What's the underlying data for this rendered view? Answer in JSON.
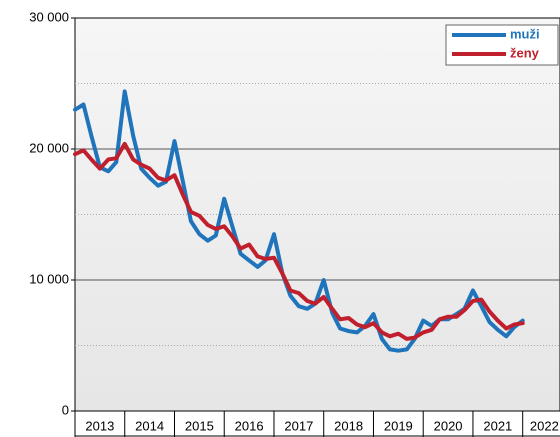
{
  "chart_data": {
    "type": "line",
    "categories": [
      "2013",
      "2014",
      "2015",
      "2016",
      "2017",
      "2018",
      "2019",
      "2020",
      "2021",
      "2022"
    ],
    "x": [
      2013,
      2013.17,
      2013.33,
      2013.5,
      2013.67,
      2013.83,
      2014,
      2014.17,
      2014.33,
      2014.5,
      2014.67,
      2014.83,
      2015,
      2015.17,
      2015.33,
      2015.5,
      2015.67,
      2015.83,
      2016,
      2016.17,
      2016.33,
      2016.5,
      2016.67,
      2016.83,
      2017,
      2017.17,
      2017.33,
      2017.5,
      2017.67,
      2017.83,
      2018,
      2018.17,
      2018.33,
      2018.5,
      2018.67,
      2018.83,
      2019,
      2019.17,
      2019.33,
      2019.5,
      2019.67,
      2019.83,
      2020,
      2020.17,
      2020.33,
      2020.5,
      2020.67,
      2020.83,
      2021,
      2021.17,
      2021.33,
      2021.5,
      2021.67,
      2021.83,
      2022
    ],
    "series": [
      {
        "name": "muži",
        "color": "#1f74bb",
        "values": [
          23000,
          23400,
          21000,
          18600,
          18300,
          19000,
          24400,
          21000,
          18500,
          17800,
          17200,
          17500,
          20600,
          17500,
          14500,
          13500,
          13000,
          13400,
          16200,
          14000,
          12000,
          11500,
          11000,
          11500,
          13500,
          10500,
          8800,
          8000,
          7800,
          8200,
          10000,
          7500,
          6300,
          6100,
          6000,
          6500,
          7400,
          5500,
          4700,
          4600,
          4700,
          5500,
          6900,
          6500,
          7000,
          7000,
          7400,
          7800,
          9200,
          8000,
          6800,
          6200,
          5700,
          6400,
          6900
        ]
      },
      {
        "name": "ženy",
        "color": "#c0202e",
        "values": [
          19600,
          19900,
          19200,
          18500,
          19200,
          19300,
          20400,
          19200,
          18800,
          18500,
          17800,
          17600,
          18000,
          16500,
          15200,
          14900,
          14200,
          13900,
          14100,
          13300,
          12400,
          12700,
          11800,
          11600,
          11700,
          10500,
          9200,
          9000,
          8400,
          8200,
          8700,
          7800,
          7000,
          7100,
          6600,
          6400,
          6700,
          6000,
          5700,
          5900,
          5500,
          5600,
          6000,
          6200,
          7000,
          7200,
          7200,
          7700,
          8400,
          8500,
          7600,
          6900,
          6300,
          6600,
          6700
        ]
      }
    ],
    "xlim": [
      2013,
      2022.75
    ],
    "xticks": [
      2013,
      2014,
      2015,
      2016,
      2017,
      2018,
      2019,
      2020,
      2021,
      2022
    ],
    "ylim": [
      0,
      30000
    ],
    "yticks": [
      {
        "value": 0,
        "label": "0"
      },
      {
        "value": 10000,
        "label": "10 000"
      },
      {
        "value": 20000,
        "label": "20 000"
      },
      {
        "value": 30000,
        "label": "30 000"
      }
    ],
    "minor_yticks": [
      5000,
      15000,
      25000
    ],
    "grid": true,
    "legend": "upper right"
  }
}
